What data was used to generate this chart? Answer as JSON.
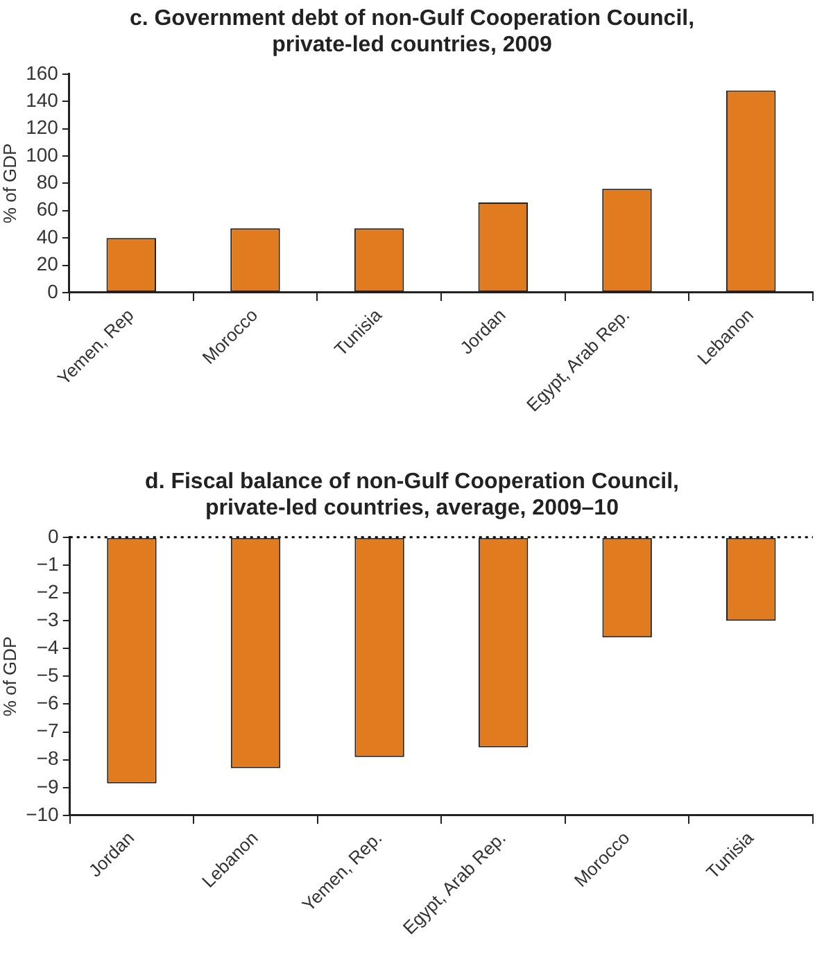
{
  "chart_data": [
    {
      "type": "bar",
      "title": "c. Government debt of non-Gulf Cooperation Council,\nprivate-led countries, 2009",
      "ylabel": "% of GDP",
      "categories": [
        "Yemen, Rep",
        "Morocco",
        "Tunisia",
        "Jordan",
        "Egypt, Arab Rep.",
        "Lebanon"
      ],
      "values": [
        40,
        47,
        47,
        66,
        76,
        148
      ],
      "color": "#e07b1f",
      "ylim": [
        0,
        160
      ],
      "yticks": [
        0,
        20,
        40,
        60,
        80,
        100,
        120,
        140,
        160
      ],
      "grid": false,
      "legend": false
    },
    {
      "type": "bar",
      "title": "d. Fiscal balance of non-Gulf Cooperation Council,\nprivate-led countries, average, 2009–10",
      "ylabel": "% of GDP",
      "categories": [
        "Jordan",
        "Lebanon",
        "Yemen, Rep.",
        "Egypt, Arab Rep.",
        "Morocco",
        "Tunisia"
      ],
      "values": [
        -8.85,
        -8.3,
        -7.9,
        -7.55,
        -3.6,
        -3.0
      ],
      "color": "#e07b1f",
      "ylim": [
        -10,
        0
      ],
      "yticks": [
        {
          "value": -10,
          "label": "−10"
        },
        {
          "value": -9,
          "label": "−9"
        },
        {
          "value": -8,
          "label": "−8"
        },
        {
          "value": -7,
          "label": "−7"
        },
        {
          "value": -6,
          "label": "−6"
        },
        {
          "value": -5,
          "label": "−5"
        },
        {
          "value": -4,
          "label": "−4"
        },
        {
          "value": -3,
          "label": "−3"
        },
        {
          "value": -2,
          "label": "−2"
        },
        {
          "value": -1,
          "label": "−1"
        },
        0
      ],
      "ref_lines": [
        {
          "axis": "y",
          "value": 0,
          "line_style": "dotted"
        }
      ],
      "grid": false,
      "legend": false
    }
  ]
}
